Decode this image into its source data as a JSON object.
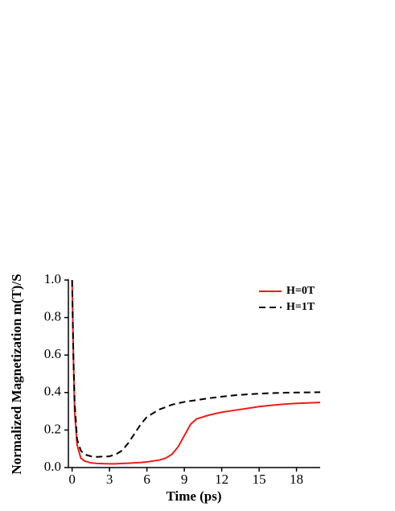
{
  "chart_data": {
    "type": "line",
    "xlabel": "Time (ps)",
    "ylabel": "Normalized Magnetization m(T)/S",
    "xlim": [
      -0.3,
      19.9
    ],
    "ylim": [
      0,
      1
    ],
    "xticks": [
      0,
      3,
      6,
      9,
      12,
      15,
      18
    ],
    "yticks": [
      {
        "value": 0,
        "label": "0.0"
      },
      0.2,
      0.4,
      0.6,
      0.8,
      {
        "value": 1,
        "label": "1.0"
      }
    ],
    "legend": "upper right",
    "x": [
      0,
      0.1,
      0.2,
      0.4,
      0.7,
      1,
      1.5,
      2,
      3,
      3.5,
      4,
      4.5,
      5,
      5.5,
      6,
      7,
      7.5,
      8,
      8.5,
      9,
      9.5,
      10,
      11,
      12,
      13,
      14,
      15,
      16,
      17,
      18,
      19,
      19.9
    ],
    "series": [
      {
        "name": "H=0T",
        "color": "#ee1c1c",
        "dash": false,
        "values": [
          1.0,
          0.6,
          0.3,
          0.12,
          0.05,
          0.035,
          0.025,
          0.022,
          0.02,
          0.02,
          0.022,
          0.023,
          0.025,
          0.027,
          0.03,
          0.04,
          0.05,
          0.07,
          0.11,
          0.17,
          0.23,
          0.26,
          0.28,
          0.295,
          0.305,
          0.315,
          0.325,
          0.332,
          0.338,
          0.342,
          0.345,
          0.347
        ]
      },
      {
        "name": "H=1T",
        "color": "#000000",
        "dash": true,
        "values": [
          1.0,
          0.6,
          0.35,
          0.15,
          0.09,
          0.07,
          0.06,
          0.057,
          0.06,
          0.07,
          0.09,
          0.13,
          0.18,
          0.23,
          0.27,
          0.31,
          0.322,
          0.335,
          0.343,
          0.35,
          0.355,
          0.36,
          0.37,
          0.378,
          0.385,
          0.39,
          0.394,
          0.397,
          0.399,
          0.4,
          0.401,
          0.402
        ]
      }
    ]
  }
}
